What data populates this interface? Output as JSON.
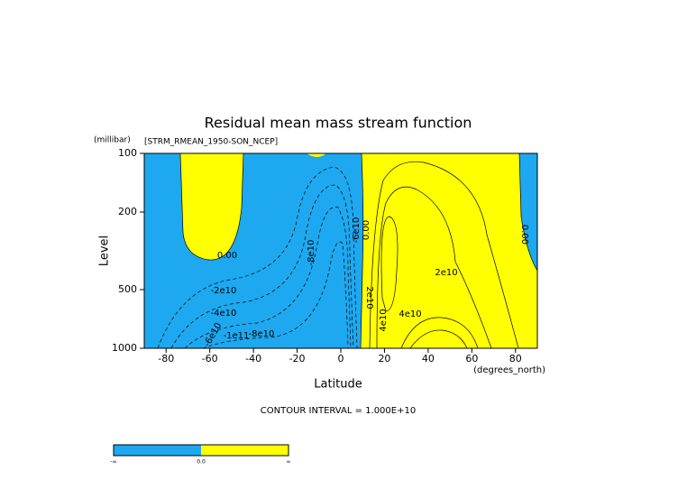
{
  "chart_data": {
    "type": "contour",
    "title": "Residual mean mass stream function",
    "subtitle": "[STRM_RMEAN_1950-SON_NCEP]",
    "y_unit": "(millibar)",
    "y_label": "Level",
    "x_label": "Latitude",
    "x_unit": "(degrees_north)",
    "note": "CONTOUR INTERVAL = 1.000E+10",
    "xlim": [
      -90,
      90
    ],
    "xticks": [
      -80,
      -60,
      -40,
      -20,
      0,
      20,
      40,
      60,
      80
    ],
    "ylim": [
      1000,
      100
    ],
    "yticks": [
      100,
      200,
      500,
      1000
    ],
    "yscale": "log",
    "colors": [
      "#1ea8f0",
      "#ffff00"
    ],
    "contour_labels": [
      "0.00",
      "-2e10",
      "-4e10",
      "-6e10",
      "-1e11",
      "-8e10",
      "-8e10",
      "-6e10",
      "0.00",
      "2e10",
      "4e10",
      "2e10",
      "4e10",
      "0.00"
    ],
    "colorbar_labels": [
      "-∞",
      "0.0",
      "∞"
    ]
  }
}
